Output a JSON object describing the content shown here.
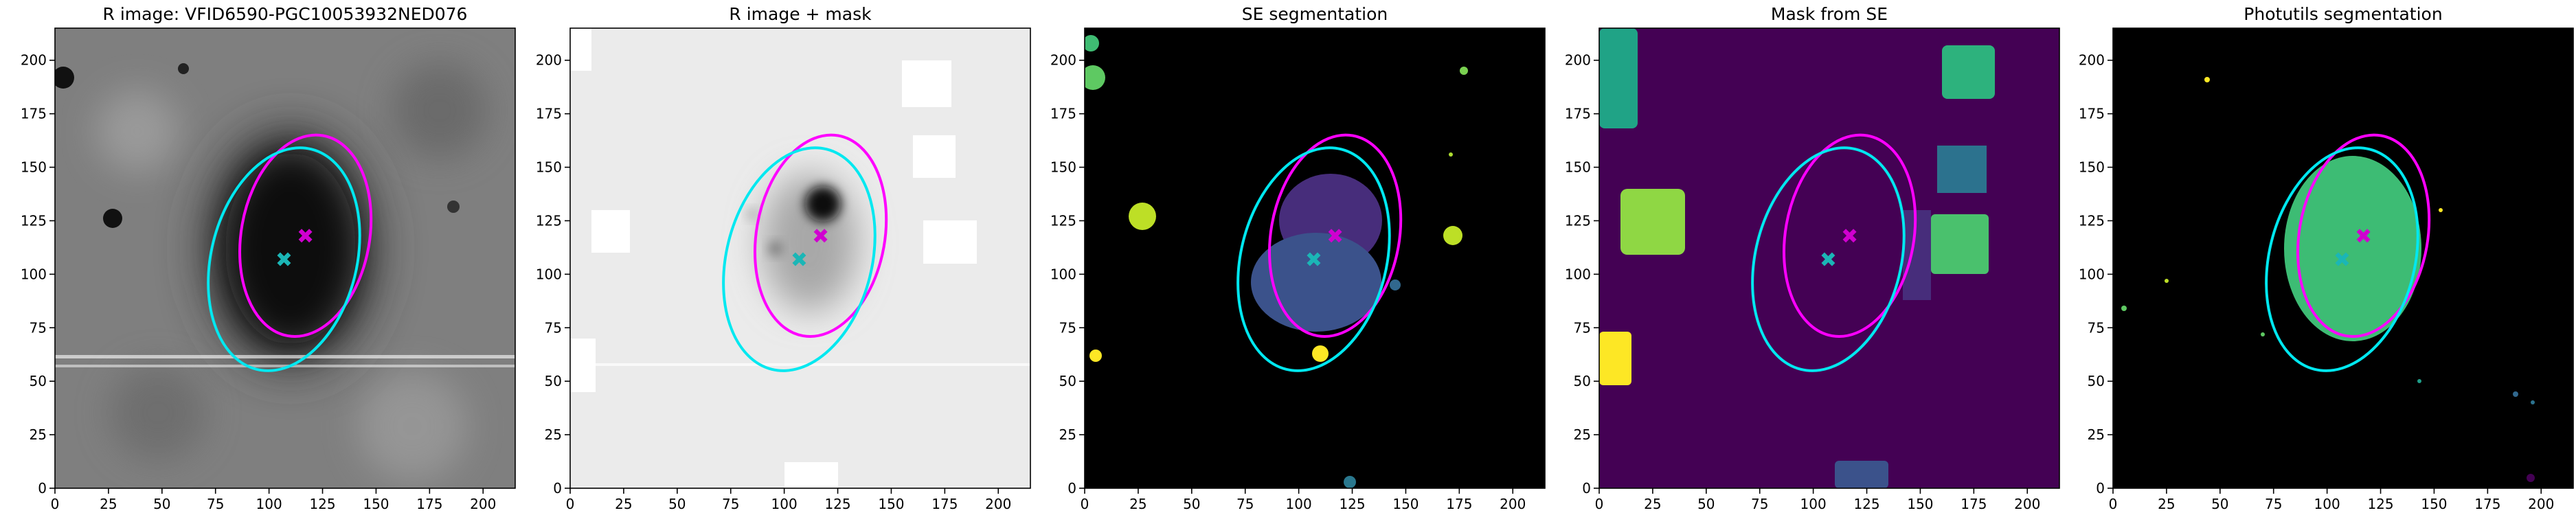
{
  "chart_data": [
    {
      "type": "image",
      "title": "R image: VFID6590-PGC10053932NED076",
      "xlim": [
        0,
        215
      ],
      "ylim": [
        0,
        215
      ],
      "xticks": [
        0,
        25,
        50,
        75,
        100,
        125,
        150,
        175,
        200
      ],
      "yticks": [
        0,
        25,
        50,
        75,
        100,
        125,
        150,
        175,
        200
      ],
      "ellipses": [
        {
          "color": "#ff00ff",
          "center": [
            117,
            118
          ],
          "width": 60,
          "height": 95,
          "angle": -10
        },
        {
          "color": "#00e8f0",
          "center": [
            107,
            107
          ],
          "width": 68,
          "height": 106,
          "angle": -14
        }
      ],
      "markers": [
        {
          "color": "#d000d0",
          "x": 117,
          "y": 118
        },
        {
          "color": "#1bb6b6",
          "x": 107,
          "y": 107
        }
      ]
    },
    {
      "type": "image",
      "title": "R image + mask",
      "xlim": [
        0,
        215
      ],
      "ylim": [
        0,
        215
      ],
      "xticks": [
        0,
        25,
        50,
        75,
        100,
        125,
        150,
        175,
        200
      ],
      "yticks": [
        0,
        25,
        50,
        75,
        100,
        125,
        150,
        175,
        200
      ],
      "ellipses": [
        {
          "color": "#ff00ff",
          "center": [
            117,
            118
          ],
          "width": 60,
          "height": 95,
          "angle": -10
        },
        {
          "color": "#00e8f0",
          "center": [
            107,
            107
          ],
          "width": 68,
          "height": 106,
          "angle": -14
        }
      ],
      "markers": [
        {
          "color": "#d000d0",
          "x": 117,
          "y": 118
        },
        {
          "color": "#1bb6b6",
          "x": 107,
          "y": 107
        }
      ]
    },
    {
      "type": "image",
      "title": "SE segmentation",
      "xlim": [
        0,
        215
      ],
      "ylim": [
        0,
        215
      ],
      "xticks": [
        0,
        25,
        50,
        75,
        100,
        125,
        150,
        175,
        200
      ],
      "yticks": [
        0,
        25,
        50,
        75,
        100,
        125,
        150,
        175,
        200
      ],
      "ellipses": [
        {
          "color": "#ff00ff",
          "center": [
            117,
            118
          ],
          "width": 60,
          "height": 95,
          "angle": -10
        },
        {
          "color": "#00e8f0",
          "center": [
            107,
            107
          ],
          "width": 68,
          "height": 106,
          "angle": -14
        }
      ],
      "markers": [
        {
          "color": "#d000d0",
          "x": 117,
          "y": 118
        },
        {
          "color": "#1bb6b6",
          "x": 107,
          "y": 107
        }
      ]
    },
    {
      "type": "image",
      "title": "Mask from SE",
      "xlim": [
        0,
        215
      ],
      "ylim": [
        0,
        215
      ],
      "xticks": [
        0,
        25,
        50,
        75,
        100,
        125,
        150,
        175,
        200
      ],
      "yticks": [
        0,
        25,
        50,
        75,
        100,
        125,
        150,
        175,
        200
      ],
      "ellipses": [
        {
          "color": "#ff00ff",
          "center": [
            117,
            118
          ],
          "width": 60,
          "height": 95,
          "angle": -10
        },
        {
          "color": "#00e8f0",
          "center": [
            107,
            107
          ],
          "width": 68,
          "height": 106,
          "angle": -14
        }
      ],
      "markers": [
        {
          "color": "#d000d0",
          "x": 117,
          "y": 118
        },
        {
          "color": "#1bb6b6",
          "x": 107,
          "y": 107
        }
      ]
    },
    {
      "type": "image",
      "title": "Photutils segmentation",
      "xlim": [
        0,
        215
      ],
      "ylim": [
        0,
        215
      ],
      "xticks": [
        0,
        25,
        50,
        75,
        100,
        125,
        150,
        175,
        200
      ],
      "yticks": [
        0,
        25,
        50,
        75,
        100,
        125,
        150,
        175,
        200
      ],
      "ellipses": [
        {
          "color": "#ff00ff",
          "center": [
            117,
            118
          ],
          "width": 60,
          "height": 95,
          "angle": -10
        },
        {
          "color": "#00e8f0",
          "center": [
            107,
            107
          ],
          "width": 68,
          "height": 106,
          "angle": -14
        }
      ],
      "markers": [
        {
          "color": "#d000d0",
          "x": 117,
          "y": 118
        },
        {
          "color": "#1bb6b6",
          "x": 107,
          "y": 107
        }
      ]
    }
  ]
}
